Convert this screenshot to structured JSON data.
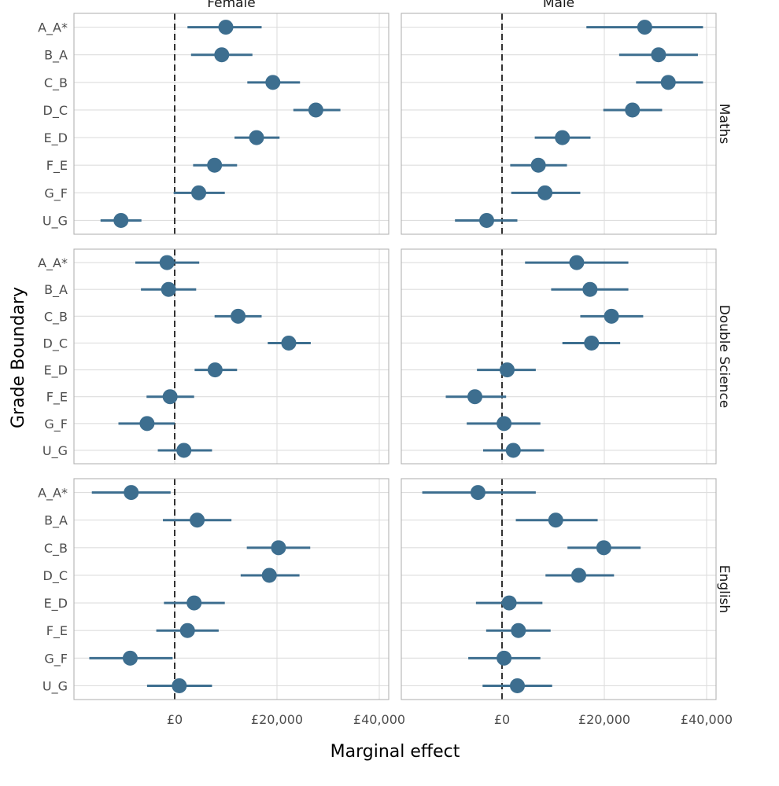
{
  "chart_data": {
    "type": "scatter",
    "subtype": "dot-and-whisker faceted",
    "xlabel": "Marginal effect",
    "ylabel": "Grade Boundary",
    "x_ticks": [
      0,
      20000,
      40000
    ],
    "x_tick_labels": [
      "£0",
      "£20,000",
      "£40,000"
    ],
    "xlim": [
      -20000,
      42000
    ],
    "reference_line_x": 0,
    "categories": [
      "A_A*",
      "B_A",
      "C_B",
      "D_C",
      "E_D",
      "F_E",
      "G_F",
      "U_G"
    ],
    "columns": [
      "Female",
      "Male"
    ],
    "rows": [
      "Maths",
      "Double Science",
      "English"
    ],
    "point_color": "#3d6e8f",
    "panels": [
      {
        "row": "Maths",
        "column": "Female",
        "estimate": [
          10000,
          9200,
          19200,
          27600,
          16000,
          7800,
          4700,
          -10500
        ],
        "lower": [
          2500,
          3200,
          14200,
          23200,
          11700,
          3600,
          -200,
          -14500
        ],
        "upper": [
          17000,
          15200,
          24500,
          32400,
          20500,
          12200,
          9800,
          -6500
        ]
      },
      {
        "row": "Maths",
        "column": "Male",
        "estimate": [
          27900,
          30600,
          32500,
          25500,
          11800,
          7100,
          8400,
          -3000
        ],
        "lower": [
          16500,
          22900,
          26200,
          19800,
          6400,
          1600,
          1800,
          -9200
        ],
        "upper": [
          39300,
          38300,
          39300,
          31300,
          17300,
          12700,
          15300,
          3000
        ]
      },
      {
        "row": "Double Science",
        "column": "Female",
        "estimate": [
          -1500,
          -1200,
          12400,
          22300,
          7900,
          -900,
          -5400,
          1800
        ],
        "lower": [
          -7700,
          -6600,
          7800,
          18200,
          3900,
          -5500,
          -11000,
          -3300
        ],
        "upper": [
          4800,
          4200,
          17000,
          26600,
          12200,
          3800,
          0,
          7300
        ]
      },
      {
        "row": "Double Science",
        "column": "Male",
        "estimate": [
          14600,
          17200,
          21400,
          17500,
          1000,
          -5300,
          400,
          2200
        ],
        "lower": [
          4500,
          9600,
          15300,
          11800,
          -4900,
          -11000,
          -6900,
          -3700
        ],
        "upper": [
          24700,
          24700,
          27600,
          23100,
          6600,
          800,
          7500,
          8200
        ]
      },
      {
        "row": "English",
        "column": "Female",
        "estimate": [
          -8500,
          4400,
          20300,
          18500,
          3800,
          2500,
          -8700,
          900
        ],
        "lower": [
          -16200,
          -2300,
          14100,
          12900,
          -2100,
          -3600,
          -16700,
          -5400
        ],
        "upper": [
          -800,
          11100,
          26500,
          24400,
          9800,
          8600,
          -400,
          7300
        ]
      },
      {
        "row": "English",
        "column": "Male",
        "estimate": [
          -4700,
          10500,
          19900,
          15000,
          1400,
          3200,
          400,
          3000
        ],
        "lower": [
          -15600,
          2700,
          12800,
          8500,
          -5100,
          -3100,
          -6600,
          -3800
        ],
        "upper": [
          6600,
          18700,
          27100,
          21900,
          7900,
          9500,
          7500,
          9800
        ]
      }
    ]
  }
}
